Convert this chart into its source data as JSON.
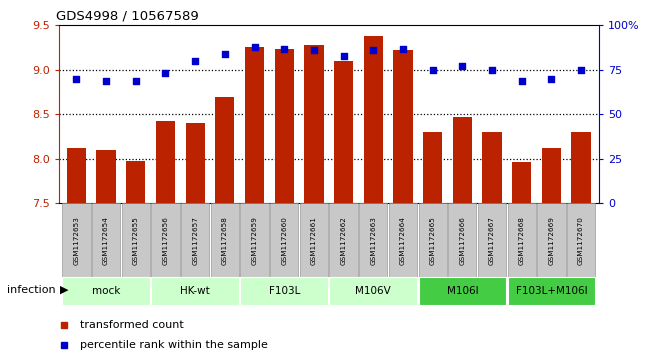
{
  "title": "GDS4998 / 10567589",
  "samples": [
    "GSM1172653",
    "GSM1172654",
    "GSM1172655",
    "GSM1172656",
    "GSM1172657",
    "GSM1172658",
    "GSM1172659",
    "GSM1172660",
    "GSM1172661",
    "GSM1172662",
    "GSM1172663",
    "GSM1172664",
    "GSM1172665",
    "GSM1172666",
    "GSM1172667",
    "GSM1172668",
    "GSM1172669",
    "GSM1172670"
  ],
  "transformed_counts": [
    8.12,
    8.1,
    7.97,
    8.42,
    8.4,
    8.7,
    9.26,
    9.23,
    9.28,
    9.1,
    9.38,
    9.22,
    8.3,
    8.47,
    8.3,
    7.96,
    8.12,
    8.3
  ],
  "percentile_ranks": [
    70,
    69,
    69,
    73,
    80,
    84,
    88,
    87,
    86,
    83,
    86,
    87,
    75,
    77,
    75,
    69,
    70,
    75
  ],
  "groups": [
    {
      "label": "mock",
      "start": 0,
      "end": 3,
      "color": "#ccffcc"
    },
    {
      "label": "HK-wt",
      "start": 3,
      "end": 6,
      "color": "#ccffcc"
    },
    {
      "label": "F103L",
      "start": 6,
      "end": 9,
      "color": "#ccffcc"
    },
    {
      "label": "M106V",
      "start": 9,
      "end": 12,
      "color": "#ccffcc"
    },
    {
      "label": "M106I",
      "start": 12,
      "end": 15,
      "color": "#44cc44"
    },
    {
      "label": "F103L+M106I",
      "start": 15,
      "end": 18,
      "color": "#44cc44"
    }
  ],
  "ylim_left": [
    7.5,
    9.5
  ],
  "ylim_right": [
    0,
    100
  ],
  "yticks_left": [
    7.5,
    8.0,
    8.5,
    9.0,
    9.5
  ],
  "yticks_right": [
    0,
    25,
    50,
    75,
    100
  ],
  "ytick_right_labels": [
    "0",
    "25",
    "50",
    "75",
    "100%"
  ],
  "bar_color": "#bb2200",
  "dot_color": "#0000cc",
  "grid_color": "#000000",
  "gridlines": [
    8.0,
    8.5,
    9.0
  ],
  "infection_label": "infection",
  "legend_items": [
    {
      "label": "transformed count",
      "color": "#bb2200"
    },
    {
      "label": "percentile rank within the sample",
      "color": "#0000cc"
    }
  ],
  "sample_box_color": "#c8c8c8",
  "sample_box_edge": "#888888"
}
